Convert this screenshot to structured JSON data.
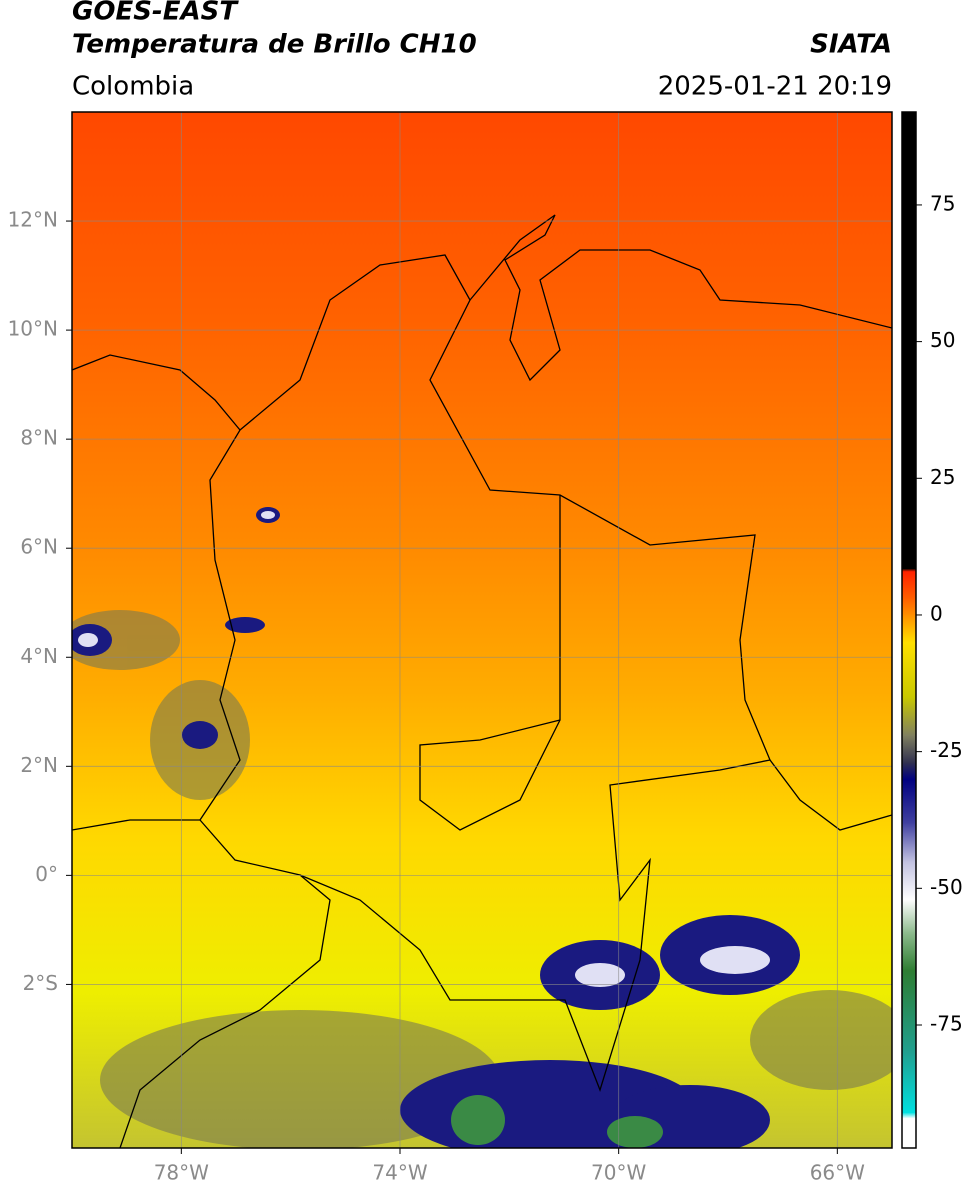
{
  "header": {
    "platform": "GOES-EAST",
    "product": "Temperatura de Brillo CH10",
    "source": "SIATA",
    "region": "Colombia",
    "datetime": "2025-01-21 20:19"
  },
  "map": {
    "xlim": [
      -80,
      -65
    ],
    "ylim": [
      -5,
      14
    ],
    "grid": true,
    "xticks": [
      {
        "value": -78,
        "label": "78°W"
      },
      {
        "value": -74,
        "label": "74°W"
      },
      {
        "value": -70,
        "label": "70°W"
      },
      {
        "value": -66,
        "label": "66°W"
      }
    ],
    "yticks": [
      {
        "value": 12,
        "label": "12°N"
      },
      {
        "value": 10,
        "label": "10°N"
      },
      {
        "value": 8,
        "label": "8°N"
      },
      {
        "value": 6,
        "label": "6°N"
      },
      {
        "value": 4,
        "label": "4°N"
      },
      {
        "value": 2,
        "label": "2°N"
      },
      {
        "value": 0,
        "label": "0°"
      },
      {
        "value": -2,
        "label": "2°S"
      }
    ]
  },
  "colorbar": {
    "lim": [
      -97.5,
      92
    ],
    "ticks": [
      75,
      50,
      25,
      0,
      -25,
      -50,
      -75
    ],
    "colormap": [
      {
        "value": -97.5,
        "color": "#ffffff"
      },
      {
        "value": -92,
        "color": "#ffffff"
      },
      {
        "value": -91,
        "color": "#00e0e0"
      },
      {
        "value": -80,
        "color": "#20a090"
      },
      {
        "value": -65,
        "color": "#2e7d32"
      },
      {
        "value": -58,
        "color": "#8fbc8f"
      },
      {
        "value": -52,
        "color": "#ffffff"
      },
      {
        "value": -45,
        "color": "#c0c0e0"
      },
      {
        "value": -38,
        "color": "#4040a0"
      },
      {
        "value": -30,
        "color": "#000080"
      },
      {
        "value": -27,
        "color": "#303050"
      },
      {
        "value": -22,
        "color": "#808060"
      },
      {
        "value": -15,
        "color": "#c8c800"
      },
      {
        "value": -5,
        "color": "#ffe000"
      },
      {
        "value": 0,
        "color": "#ff9000"
      },
      {
        "value": 3,
        "color": "#ff6000"
      },
      {
        "value": 8,
        "color": "#ff2000"
      },
      {
        "value": 8.5,
        "color": "#000000"
      },
      {
        "value": 92,
        "color": "#000000"
      }
    ]
  }
}
